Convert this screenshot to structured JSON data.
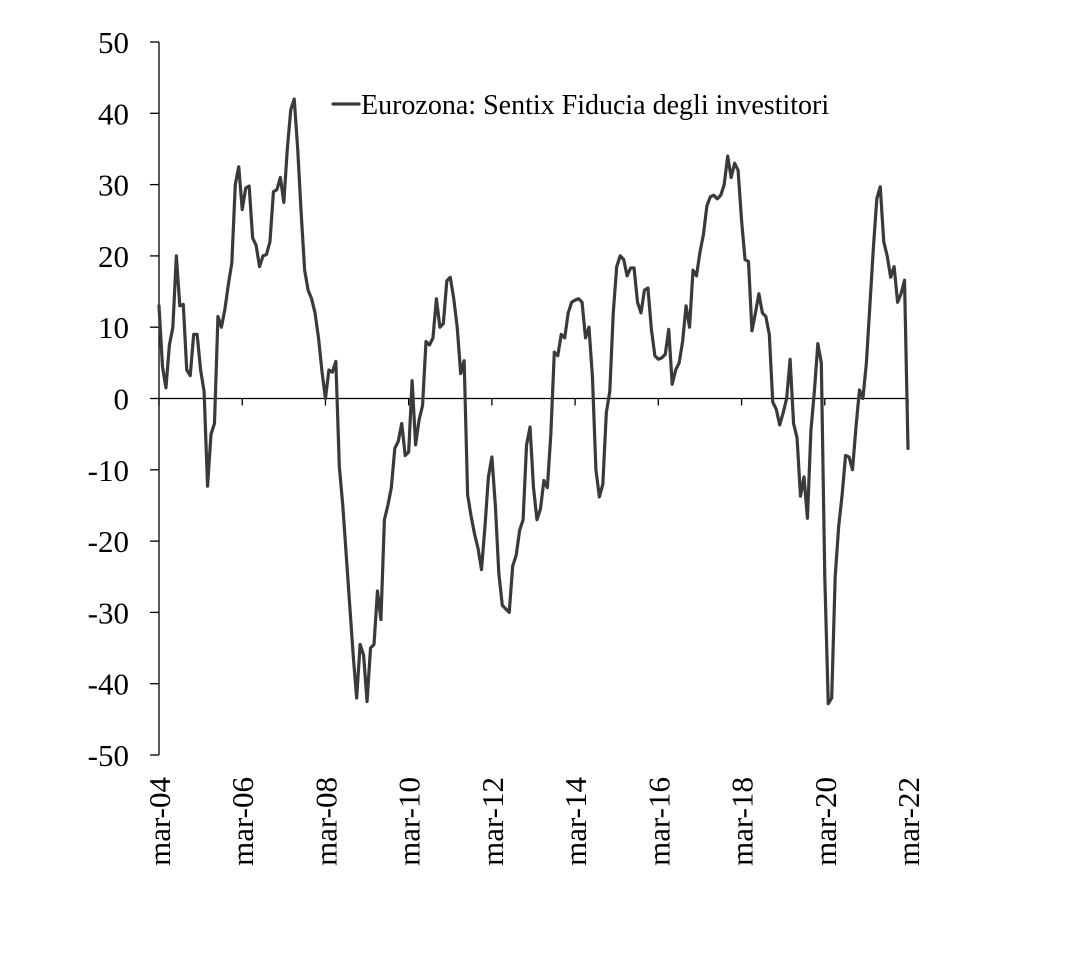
{
  "chart_data": {
    "type": "line",
    "title": "",
    "xlabel": "",
    "ylabel": "",
    "ylim": [
      -50,
      50
    ],
    "y_ticks": [
      50,
      40,
      30,
      20,
      10,
      0,
      -10,
      -20,
      -30,
      -40,
      -50
    ],
    "x_tick_labels": [
      "mar-04",
      "mar-06",
      "mar-08",
      "mar-10",
      "mar-12",
      "mar-14",
      "mar-16",
      "mar-18",
      "mar-20",
      "mar-22"
    ],
    "x_range": [
      "2004-03",
      "2022-03"
    ],
    "grid": false,
    "legend": {
      "position": "top-right"
    },
    "series": [
      {
        "name": "Eurozona: Sentix Fiducia degli investitori",
        "color": "#3a3a3a",
        "x": [
          "2004-03",
          "2004-04",
          "2004-05",
          "2004-06",
          "2004-07",
          "2004-08",
          "2004-09",
          "2004-10",
          "2004-11",
          "2004-12",
          "2005-01",
          "2005-02",
          "2005-03",
          "2005-04",
          "2005-05",
          "2005-06",
          "2005-07",
          "2005-08",
          "2005-09",
          "2005-10",
          "2005-11",
          "2005-12",
          "2006-01",
          "2006-02",
          "2006-03",
          "2006-04",
          "2006-05",
          "2006-06",
          "2006-07",
          "2006-08",
          "2006-09",
          "2006-10",
          "2006-11",
          "2006-12",
          "2007-01",
          "2007-02",
          "2007-03",
          "2007-04",
          "2007-05",
          "2007-06",
          "2007-07",
          "2007-08",
          "2007-09",
          "2007-10",
          "2007-11",
          "2007-12",
          "2008-01",
          "2008-02",
          "2008-03",
          "2008-04",
          "2008-05",
          "2008-06",
          "2008-07",
          "2008-08",
          "2008-09",
          "2008-10",
          "2008-11",
          "2008-12",
          "2009-01",
          "2009-02",
          "2009-03",
          "2009-04",
          "2009-05",
          "2009-06",
          "2009-07",
          "2009-08",
          "2009-09",
          "2009-10",
          "2009-11",
          "2009-12",
          "2010-01",
          "2010-02",
          "2010-03",
          "2010-04",
          "2010-05",
          "2010-06",
          "2010-07",
          "2010-08",
          "2010-09",
          "2010-10",
          "2010-11",
          "2010-12",
          "2011-01",
          "2011-02",
          "2011-03",
          "2011-04",
          "2011-05",
          "2011-06",
          "2011-07",
          "2011-08",
          "2011-09",
          "2011-10",
          "2011-11",
          "2011-12",
          "2012-01",
          "2012-02",
          "2012-03",
          "2012-04",
          "2012-05",
          "2012-06",
          "2012-07",
          "2012-08",
          "2012-09",
          "2012-10",
          "2012-11",
          "2012-12",
          "2013-01",
          "2013-02",
          "2013-03",
          "2013-04",
          "2013-05",
          "2013-06",
          "2013-07",
          "2013-08",
          "2013-09",
          "2013-10",
          "2013-11",
          "2013-12",
          "2014-01",
          "2014-02",
          "2014-03",
          "2014-04",
          "2014-05",
          "2014-06",
          "2014-07",
          "2014-08",
          "2014-09",
          "2014-10",
          "2014-11",
          "2014-12",
          "2015-01",
          "2015-02",
          "2015-03",
          "2015-04",
          "2015-05",
          "2015-06",
          "2015-07",
          "2015-08",
          "2015-09",
          "2015-10",
          "2015-11",
          "2015-12",
          "2016-01",
          "2016-02",
          "2016-03",
          "2016-04",
          "2016-05",
          "2016-06",
          "2016-07",
          "2016-08",
          "2016-09",
          "2016-10",
          "2016-11",
          "2016-12",
          "2017-01",
          "2017-02",
          "2017-03",
          "2017-04",
          "2017-05",
          "2017-06",
          "2017-07",
          "2017-08",
          "2017-09",
          "2017-10",
          "2017-11",
          "2017-12",
          "2018-01",
          "2018-02",
          "2018-03",
          "2018-04",
          "2018-05",
          "2018-06",
          "2018-07",
          "2018-08",
          "2018-09",
          "2018-10",
          "2018-11",
          "2018-12",
          "2019-01",
          "2019-02",
          "2019-03",
          "2019-04",
          "2019-05",
          "2019-06",
          "2019-07",
          "2019-08",
          "2019-09",
          "2019-10",
          "2019-11",
          "2019-12",
          "2020-01",
          "2020-02",
          "2020-03",
          "2020-04",
          "2020-05",
          "2020-06",
          "2020-07",
          "2020-08",
          "2020-09",
          "2020-10",
          "2020-11",
          "2020-12",
          "2021-01",
          "2021-02",
          "2021-03",
          "2021-04",
          "2021-05",
          "2021-06",
          "2021-07",
          "2021-08",
          "2021-09",
          "2021-10",
          "2021-11",
          "2021-12",
          "2022-01",
          "2022-02",
          "2022-03"
        ],
        "values": [
          13.0,
          4.5,
          1.5,
          7.5,
          10.0,
          20.0,
          13.0,
          13.2,
          4.0,
          3.2,
          9.0,
          9.0,
          4.0,
          1.0,
          -12.3,
          -5.0,
          -3.5,
          11.5,
          10.0,
          12.5,
          16.0,
          19.0,
          30.0,
          32.5,
          26.5,
          29.5,
          29.8,
          22.5,
          21.5,
          18.5,
          20.0,
          20.2,
          22.0,
          29.0,
          29.3,
          31.0,
          27.5,
          35.0,
          40.5,
          42.0,
          35.0,
          26.0,
          18.0,
          15.2,
          14.0,
          12.0,
          8.5,
          3.8,
          0.0,
          4.0,
          3.7,
          5.2,
          -9.5,
          -15.0,
          -22.0,
          -29.0,
          -36.0,
          -42.0,
          -34.5,
          -36.0,
          -42.5,
          -35.0,
          -34.5,
          -27.0,
          -31.0,
          -17.0,
          -15.0,
          -12.5,
          -7.0,
          -6.0,
          -3.5,
          -8.0,
          -7.5,
          2.5,
          -6.5,
          -3.0,
          -1.0,
          8.0,
          7.5,
          8.5,
          14.0,
          10.0,
          10.5,
          16.5,
          17.0,
          14.0,
          10.0,
          3.5,
          5.3,
          -13.5,
          -16.5,
          -19.0,
          -21.0,
          -24.0,
          -18.0,
          -11.0,
          -8.2,
          -15.0,
          -24.5,
          -29.0,
          -29.5,
          -30.0,
          -23.5,
          -22.0,
          -18.5,
          -17.0,
          -6.5,
          -4.0,
          -12.5,
          -17.0,
          -15.5,
          -11.5,
          -12.5,
          -5.0,
          6.5,
          6.0,
          9.0,
          8.5,
          12.0,
          13.5,
          13.8,
          14.0,
          13.5,
          8.5,
          10.0,
          3.0,
          -10.0,
          -13.8,
          -12.0,
          -2.0,
          1.0,
          12.0,
          18.5,
          20.0,
          19.5,
          17.2,
          18.3,
          18.3,
          13.5,
          12.0,
          15.2,
          15.5,
          9.7,
          6.0,
          5.5,
          5.7,
          6.2,
          9.7,
          2.0,
          4.0,
          5.0,
          8.0,
          13.0,
          10.0,
          18.0,
          17.2,
          20.5,
          23.0,
          27.0,
          28.3,
          28.5,
          28.0,
          28.5,
          30.0,
          34.0,
          31.0,
          33.0,
          32.0,
          25.0,
          19.5,
          19.2,
          9.5,
          12.0,
          14.7,
          12.0,
          11.5,
          9.0,
          -0.5,
          -1.5,
          -3.7,
          -2.0,
          0.0,
          5.5,
          -3.5,
          -5.5,
          -13.7,
          -11.0,
          -16.8,
          -4.5,
          1.0,
          7.7,
          5.0,
          -25.0,
          -42.8,
          -42.0,
          -25.0,
          -18.0,
          -13.5,
          -8.0,
          -8.2,
          -10.0,
          -4.0,
          1.2,
          0.0,
          5.0,
          13.0,
          21.0,
          28.0,
          29.7,
          22.0,
          20.0,
          17.0,
          18.5,
          13.5,
          14.7,
          16.6,
          -7.0
        ]
      }
    ]
  }
}
